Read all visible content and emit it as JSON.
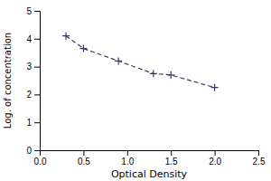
{
  "chart_data": {
    "type": "line",
    "x": [
      0.3,
      0.5,
      0.9,
      1.3,
      1.5,
      2.0
    ],
    "values": [
      4.1,
      3.65,
      3.2,
      2.75,
      2.7,
      2.25
    ],
    "xlabel": "Optical Density",
    "ylabel": "Log. of concentration",
    "xlim": [
      0,
      2.5
    ],
    "ylim": [
      0,
      5
    ],
    "xticks": [
      {
        "value": 0,
        "label": "0.0"
      },
      0.5,
      {
        "value": 1,
        "label": "1.0"
      },
      1.5,
      {
        "value": 2,
        "label": "2.0"
      },
      2.5
    ],
    "yticks": [
      0,
      1,
      2,
      3,
      4,
      5
    ],
    "color": "#3a3a6a",
    "marker": "+",
    "line_style": "dashed"
  }
}
